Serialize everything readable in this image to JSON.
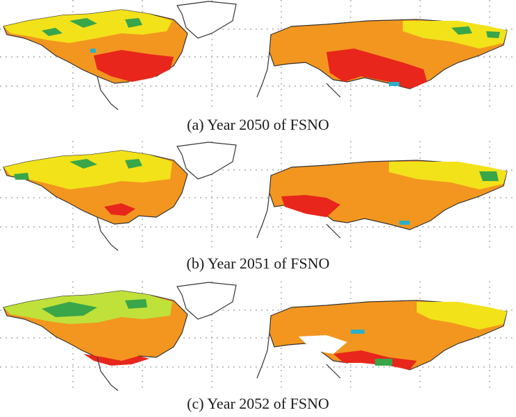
{
  "figure": {
    "panels": [
      {
        "caption": "(a)  Year 2050 of FSNO"
      },
      {
        "caption": "(b)  Year 2051 of FSNO"
      },
      {
        "caption": "(c)  Year 2052 of FSNO"
      }
    ]
  },
  "colors": {
    "red": "#e8261c",
    "orange": "#f2961f",
    "yellow": "#f2e21a",
    "lightgreen": "#bfe13a",
    "green": "#3aa64a",
    "cyan": "#2ab0c8",
    "coast": "#333333",
    "grid": "#9a9a9a"
  }
}
